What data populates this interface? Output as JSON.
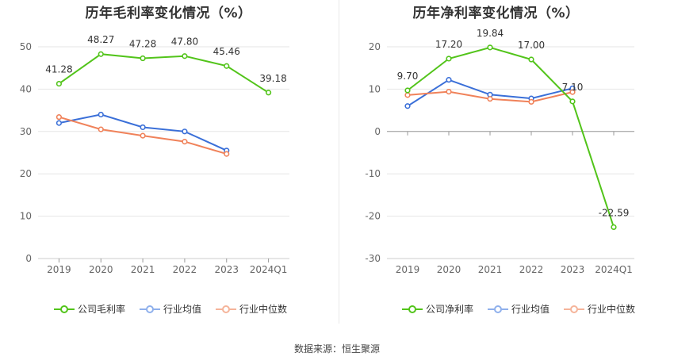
{
  "chart_data": [
    {
      "type": "line",
      "title": "历年毛利率变化情况（%）",
      "categories": [
        "2019",
        "2020",
        "2021",
        "2022",
        "2023",
        "2024Q1"
      ],
      "ylim": [
        0,
        50
      ],
      "yticks": [
        0,
        10,
        20,
        30,
        40,
        50
      ],
      "series": [
        {
          "name": "公司毛利率",
          "color": "#52c41a",
          "values": [
            41.28,
            48.27,
            47.28,
            47.8,
            45.46,
            39.18
          ],
          "labels": [
            "41.28",
            "48.27",
            "47.28",
            "47.80",
            "45.46",
            "39.18"
          ]
        },
        {
          "name": "行业均值",
          "color": "#3a6fd8",
          "values": [
            32.0,
            34.0,
            31.0,
            30.0,
            25.5,
            null
          ]
        },
        {
          "name": "行业中位数",
          "color": "#f0825a",
          "values": [
            33.4,
            30.5,
            29.0,
            27.6,
            24.7,
            null
          ]
        }
      ],
      "legend": [
        "公司毛利率",
        "行业均值",
        "行业中位数"
      ]
    },
    {
      "type": "line",
      "title": "历年净利率变化情况（%）",
      "categories": [
        "2019",
        "2020",
        "2021",
        "2022",
        "2023",
        "2024Q1"
      ],
      "ylim": [
        -30,
        20
      ],
      "yticks": [
        -30,
        -20,
        -10,
        0,
        10,
        20
      ],
      "series": [
        {
          "name": "公司净利率",
          "color": "#52c41a",
          "values": [
            9.7,
            17.2,
            19.84,
            17.0,
            7.1,
            -22.59
          ],
          "labels": [
            "9.70",
            "17.20",
            "19.84",
            "17.00",
            "7.10",
            "-22.59"
          ]
        },
        {
          "name": "行业均值",
          "color": "#3a6fd8",
          "values": [
            6.0,
            12.2,
            8.7,
            7.8,
            10.2,
            null
          ]
        },
        {
          "name": "行业中位数",
          "color": "#f0825a",
          "values": [
            8.6,
            9.4,
            7.7,
            7.0,
            9.3,
            null
          ]
        }
      ],
      "legend": [
        "公司净利率",
        "行业均值",
        "行业中位数"
      ]
    }
  ],
  "source": "数据来源：恒生聚源"
}
